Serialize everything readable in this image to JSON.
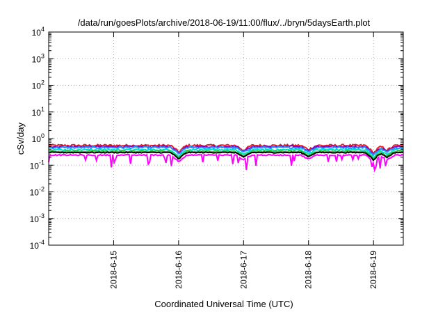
{
  "chart_data": {
    "type": "line",
    "title": "/data/run/goesPlots/archive/2018-06-19/11:00/flux/../bryn/5daysEarth.plot",
    "xlabel": "Coordinated Universal Time (UTC)",
    "ylabel": "cSv/day",
    "x_range": [
      "2018-06-14 00:00",
      "2018-06-19 11:00"
    ],
    "x_ticks": [
      "2018-6-15",
      "2018-6-16",
      "2018-6-17",
      "2018-6-18",
      "2018-6-19"
    ],
    "y_scale": "log",
    "ylim": [
      0.0001,
      10000
    ],
    "y_ticks": [
      {
        "base": "10",
        "exp": "-4",
        "value": 0.0001
      },
      {
        "base": "10",
        "exp": "-3",
        "value": 0.001
      },
      {
        "base": "10",
        "exp": "-2",
        "value": 0.01
      },
      {
        "base": "10",
        "exp": "-1",
        "value": 0.1
      },
      {
        "base": "10",
        "exp": "0",
        "value": 1
      },
      {
        "base": "10",
        "exp": "1",
        "value": 10
      },
      {
        "base": "10",
        "exp": "2",
        "value": 100
      },
      {
        "base": "10",
        "exp": "3",
        "value": 1000
      },
      {
        "base": "10",
        "exp": "4",
        "value": 10000
      }
    ],
    "grid": true,
    "legend": "none",
    "series": [
      {
        "color": "#e8202a",
        "base": 0.55,
        "noise": 0.1
      },
      {
        "color": "#8000c0",
        "base": 0.5,
        "noise": 0.08
      },
      {
        "color": "#1e90ff",
        "base": 0.46,
        "noise": 0.08
      },
      {
        "color": "#00e0c0",
        "base": 0.38,
        "noise": 0.06
      },
      {
        "color": "#30c030",
        "base": 0.33,
        "noise": 0.05
      },
      {
        "color": "#000000",
        "base": 0.3,
        "noise": 0.04
      },
      {
        "color": "#ff00ff",
        "base": 0.24,
        "noise": 0.05
      }
    ],
    "dips": [
      {
        "at": "2018-06-16 00:00",
        "depth": 0.55
      },
      {
        "at": "2018-06-17 00:00",
        "depth": 0.65
      },
      {
        "at": "2018-06-18 00:00",
        "depth": 0.7
      },
      {
        "at": "2018-06-19 00:00",
        "depth": 0.5
      },
      {
        "at": "2018-06-19 05:00",
        "depth": 0.65
      }
    ]
  }
}
